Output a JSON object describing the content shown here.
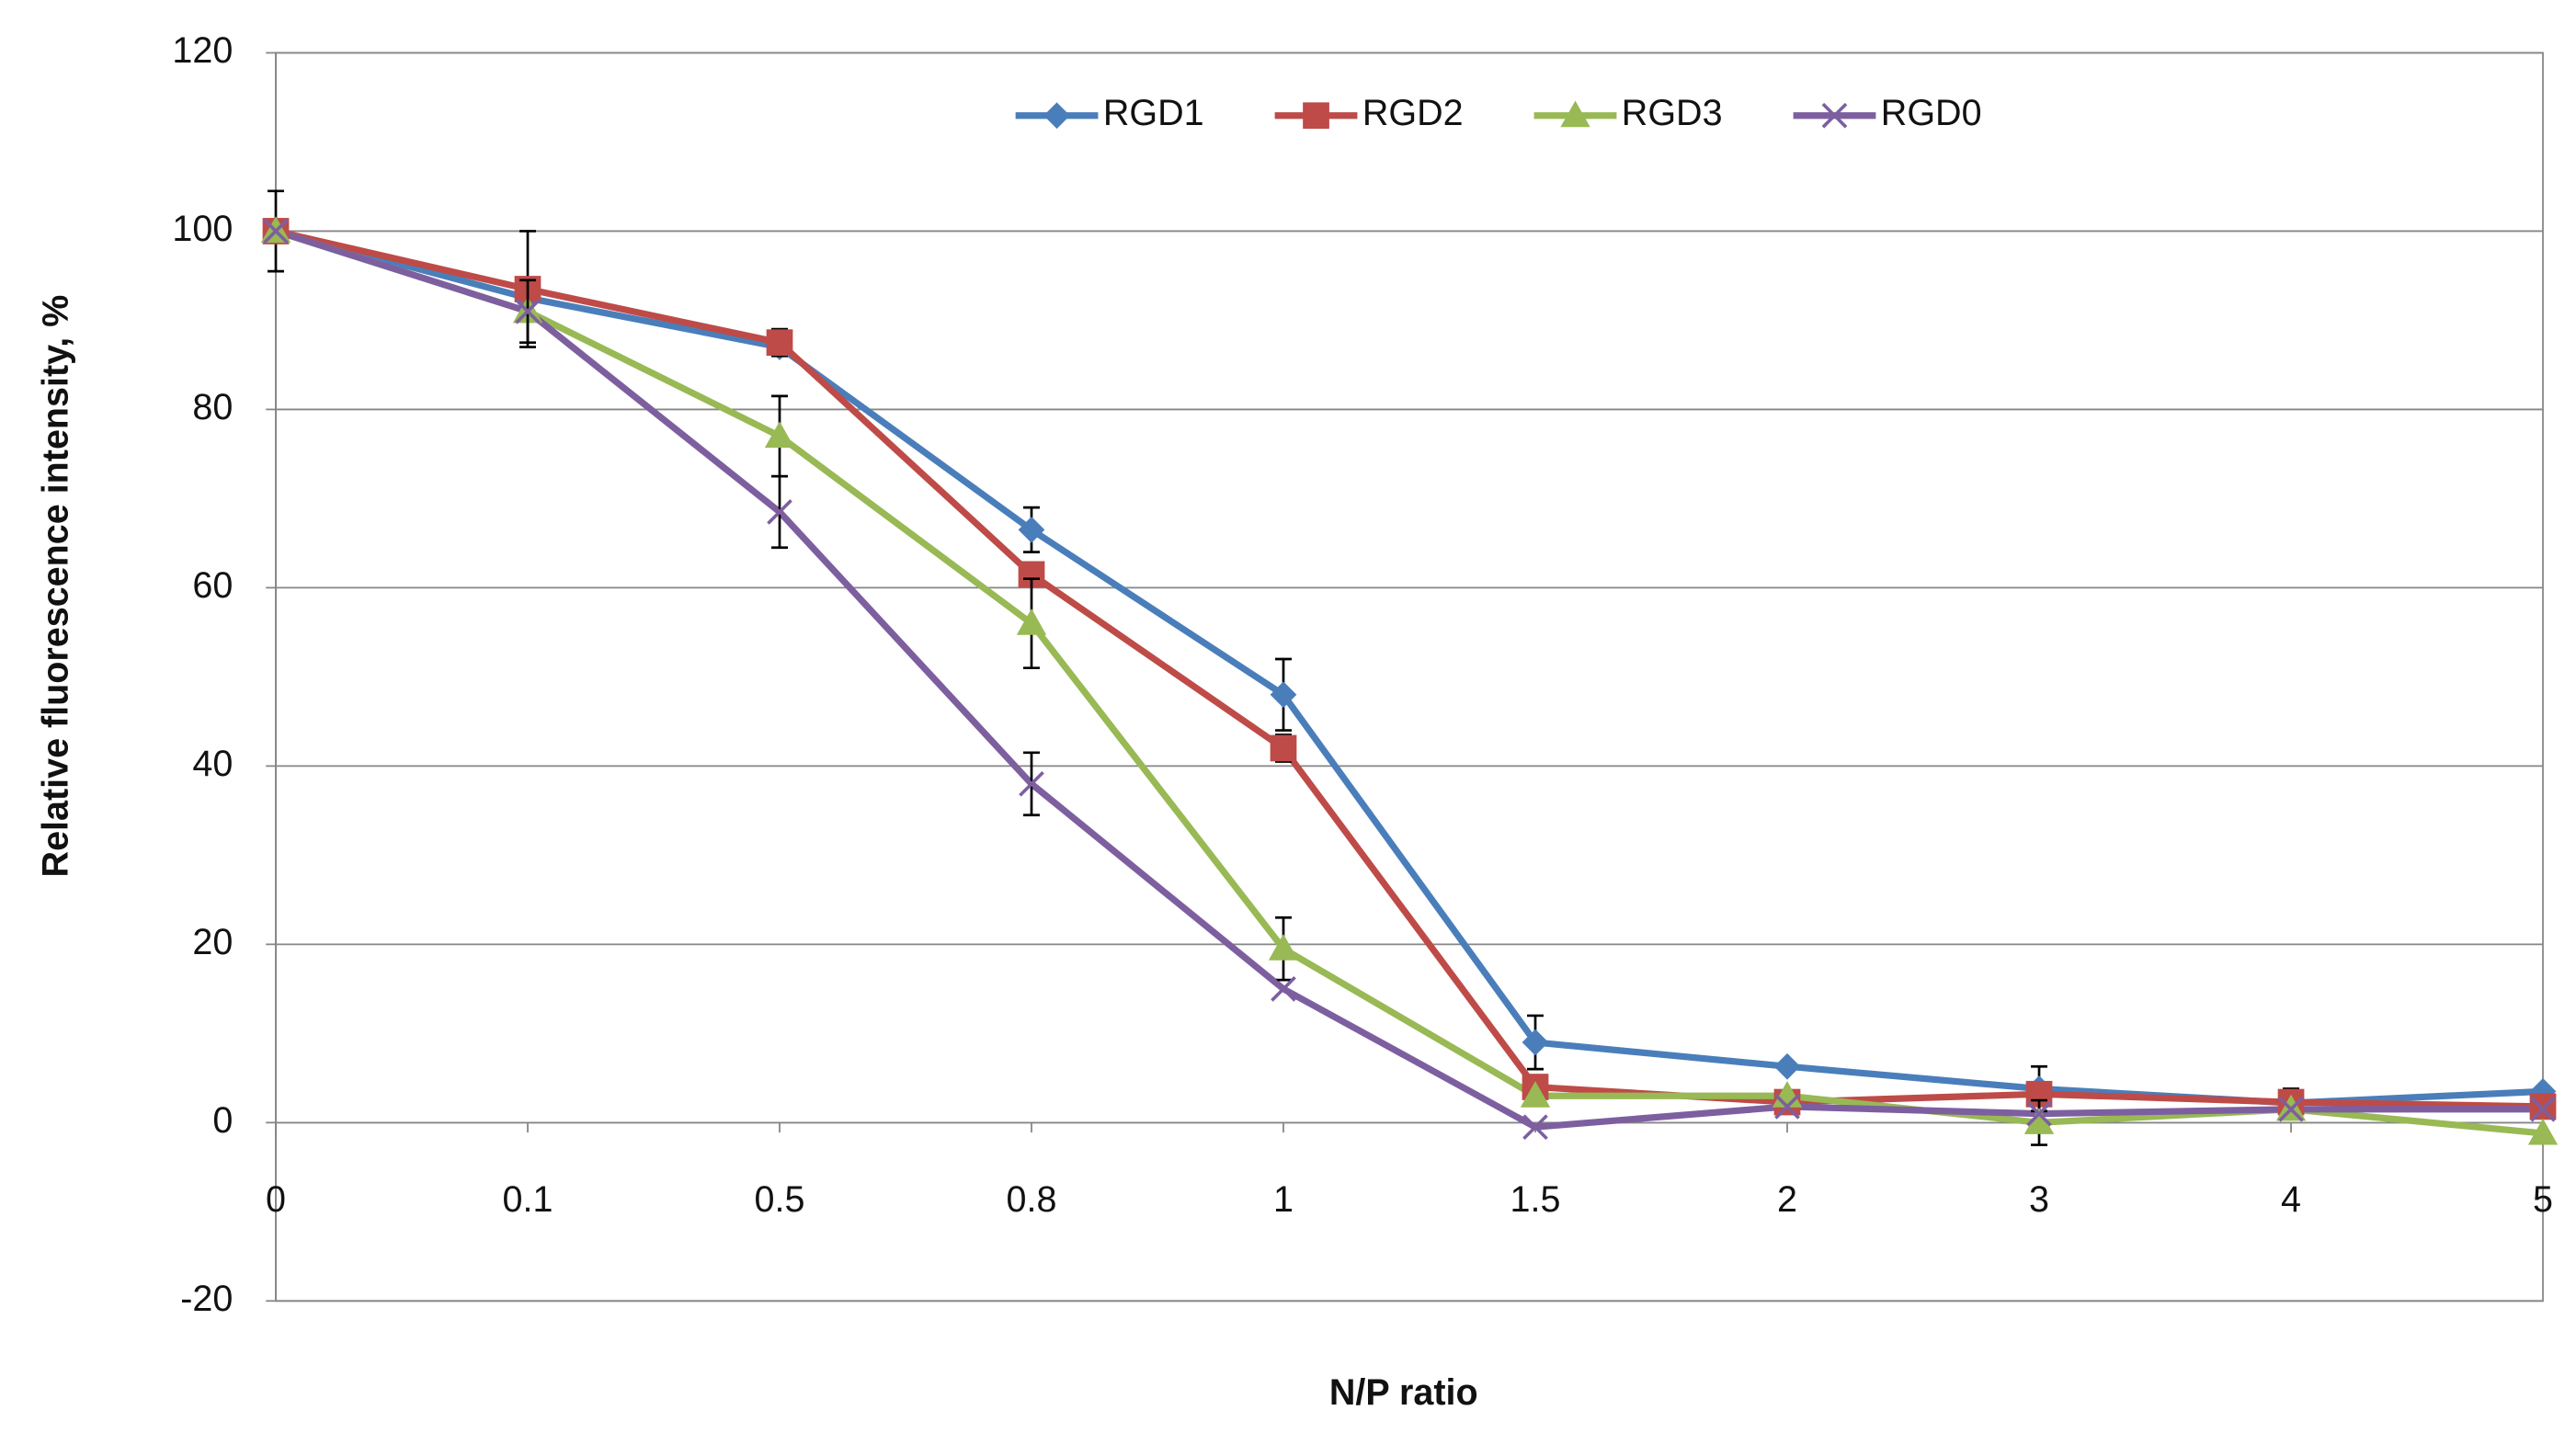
{
  "chart_data": {
    "type": "line",
    "x_label": "N/P ratio",
    "y_label": "Relative fluorescence intensity, %",
    "categories": [
      "0",
      "0.1",
      "0.5",
      "0.8",
      "1",
      "1.5",
      "2",
      "3",
      "4",
      "5"
    ],
    "ylim": [
      -20,
      120
    ],
    "yticks": [
      -20,
      0,
      20,
      40,
      60,
      80,
      100,
      120
    ],
    "grid": true,
    "legend": "top",
    "series": [
      {
        "name": "RGD1",
        "color": "#4a7ebb",
        "marker": "diamond",
        "values": [
          100,
          92.5,
          87,
          66.5,
          48,
          9,
          6.3,
          3.8,
          2.2,
          3.5
        ],
        "errors": [
          4.5,
          null,
          null,
          2.5,
          4,
          3,
          null,
          2.5,
          null,
          null
        ]
      },
      {
        "name": "RGD2",
        "color": "#be4b48",
        "marker": "square",
        "values": [
          100,
          93.5,
          87.5,
          61.5,
          42,
          4,
          2.3,
          3.2,
          2.3,
          1.8
        ],
        "errors": [
          null,
          6.5,
          1.5,
          null,
          1.5,
          null,
          null,
          null,
          1.5,
          null
        ]
      },
      {
        "name": "RGD3",
        "color": "#98b954",
        "marker": "triangle",
        "values": [
          100,
          91,
          77,
          56,
          19.5,
          3,
          3,
          0,
          1.5,
          -1.2
        ],
        "errors": [
          null,
          null,
          4.5,
          5,
          3.5,
          null,
          null,
          2.5,
          null,
          null
        ]
      },
      {
        "name": "RGD0",
        "color": "#7d5fa0",
        "marker": "x",
        "values": [
          100,
          91,
          68.5,
          38,
          15,
          -0.5,
          1.8,
          1,
          1.5,
          1.5
        ],
        "errors": [
          null,
          3.5,
          4,
          3.5,
          null,
          null,
          null,
          null,
          null,
          null
        ]
      }
    ]
  }
}
